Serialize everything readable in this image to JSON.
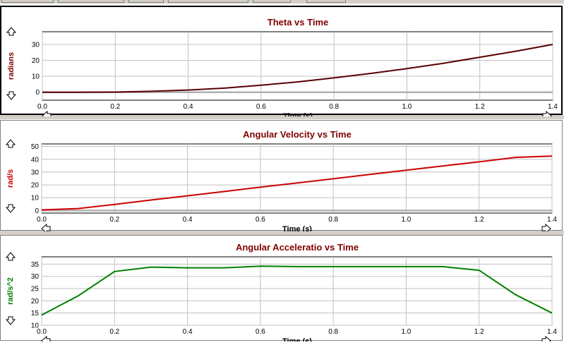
{
  "charts": [
    {
      "title": "Theta vs Time",
      "ylabel": "radians",
      "xlabel": "Time (s)",
      "line_color": "#5a0000",
      "ylabel_color": "#800000",
      "chart_data": {
        "type": "line",
        "title": "Theta vs Time",
        "xlabel": "Time (s)",
        "ylabel": "radians",
        "xlim": [
          0,
          1.4
        ],
        "ylim": [
          -5,
          38
        ],
        "x_ticks": [
          "0.0",
          "0.2",
          "0.4",
          "0.6",
          "0.8",
          "1.0",
          "1.2",
          "1.4"
        ],
        "y_ticks": [
          "0",
          "10",
          "20",
          "30"
        ],
        "grid": true,
        "series": [
          {
            "x": [
              0,
              0.1,
              0.2,
              0.3,
              0.4,
              0.5,
              0.6,
              0.7,
              0.8,
              0.9,
              1.0,
              1.1,
              1.2,
              1.3,
              1.4
            ],
            "y": [
              0,
              0,
              0.1,
              0.6,
              1.4,
              2.6,
              4.4,
              6.5,
              9.0,
              11.8,
              14.8,
              18.2,
              22.0,
              25.8,
              30.0
            ]
          }
        ]
      }
    },
    {
      "title": "Angular Velocity vs Time",
      "ylabel": "rad/s",
      "xlabel": "Time (s)",
      "line_color": "#cc0000",
      "ylabel_color": "#cc0000",
      "chart_data": {
        "type": "line",
        "title": "Angular Velocity vs Time",
        "xlabel": "Time (s)",
        "ylabel": "rad/s",
        "xlim": [
          0,
          1.4
        ],
        "ylim": [
          -2,
          52
        ],
        "x_ticks": [
          "0.0",
          "0.2",
          "0.4",
          "0.6",
          "0.8",
          "1.0",
          "1.2",
          "1.4"
        ],
        "y_ticks": [
          "0",
          "10",
          "20",
          "30",
          "40",
          "50"
        ],
        "grid": true,
        "series": [
          {
            "x": [
              0,
              0.1,
              0.2,
              0.3,
              0.4,
              0.5,
              0.6,
              0.7,
              0.8,
              0.9,
              1.0,
              1.1,
              1.2,
              1.3,
              1.4
            ],
            "y": [
              0.5,
              1.5,
              4.8,
              8.2,
              11.5,
              14.8,
              18.2,
              21.5,
              24.8,
              28.2,
              31.5,
              34.8,
              38.0,
              41.5,
              42.5
            ]
          }
        ]
      }
    },
    {
      "title": "Angular Acceleratio vs Time",
      "ylabel": "rad/s^2",
      "xlabel": "Time (s)",
      "line_color": "#008000",
      "ylabel_color": "#008000",
      "chart_data": {
        "type": "line",
        "title": "Angular Acceleratio vs Time",
        "xlabel": "Time (s)",
        "ylabel": "rad/s^2",
        "xlim": [
          0,
          1.4
        ],
        "ylim": [
          10,
          38
        ],
        "x_ticks": [
          "0.0",
          "0.2",
          "0.4",
          "0.6",
          "0.8",
          "1.0",
          "1.2",
          "1.4"
        ],
        "y_ticks": [
          "10",
          "15",
          "20",
          "25",
          "30",
          "35"
        ],
        "grid": true,
        "series": [
          {
            "x": [
              0,
              0.1,
              0.2,
              0.3,
              0.4,
              0.5,
              0.6,
              0.7,
              0.8,
              0.9,
              1.0,
              1.1,
              1.2,
              1.3,
              1.4
            ],
            "y": [
              14.2,
              22.0,
              32.0,
              33.8,
              33.5,
              33.5,
              34.2,
              34.0,
              34.0,
              34.0,
              34.0,
              34.0,
              32.5,
              22.5,
              15.0
            ]
          }
        ]
      }
    }
  ]
}
